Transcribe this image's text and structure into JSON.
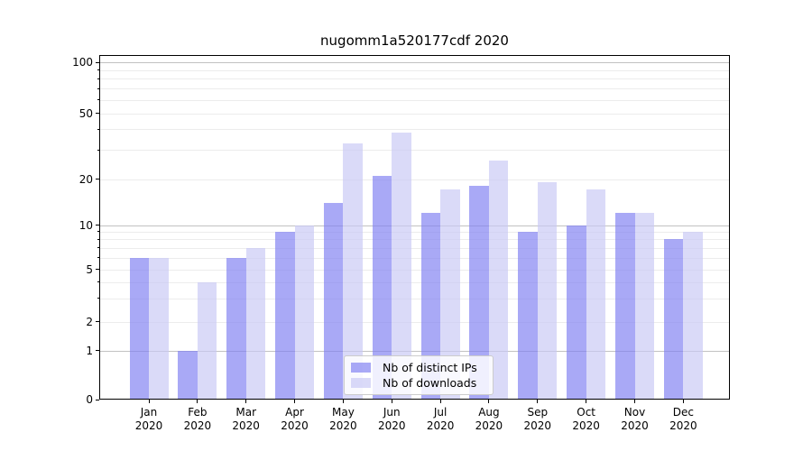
{
  "title": "nugomm1a520177cdf 2020",
  "chart_data": {
    "type": "bar",
    "title": "nugomm1a520177cdf 2020",
    "categories": [
      "Jan",
      "Feb",
      "Mar",
      "Apr",
      "May",
      "Jun",
      "Jul",
      "Aug",
      "Sep",
      "Oct",
      "Nov",
      "Dec"
    ],
    "x_tick_second_line": "2020",
    "series": [
      {
        "name": "Nb of distinct IPs",
        "color": "#8080f2",
        "opacity": 0.68,
        "values": [
          6,
          1,
          6,
          9,
          14,
          21,
          12,
          18,
          9,
          10,
          12,
          8
        ]
      },
      {
        "name": "Nb of downloads",
        "color": "#c8c8f5",
        "opacity": 0.68,
        "values": [
          6,
          4,
          7,
          10,
          33,
          38,
          17,
          26,
          19,
          17,
          12,
          9
        ]
      }
    ],
    "xlabel": "",
    "ylabel": "",
    "y_axis": {
      "scale": "symlog",
      "ylim": [
        0,
        112
      ],
      "ticks": [
        0,
        1,
        2,
        5,
        10,
        20,
        50,
        100
      ],
      "minor_ticks": [
        3,
        4,
        6,
        7,
        8,
        9,
        30,
        40,
        60,
        70,
        80,
        90
      ],
      "decade_ticks": [
        1,
        10,
        100
      ]
    },
    "grid": {
      "major_color": "#c2c2c2",
      "minor_color": "#ececec",
      "visible": true
    },
    "legend": {
      "position": "lower center",
      "border_color": "#cccccc"
    }
  }
}
